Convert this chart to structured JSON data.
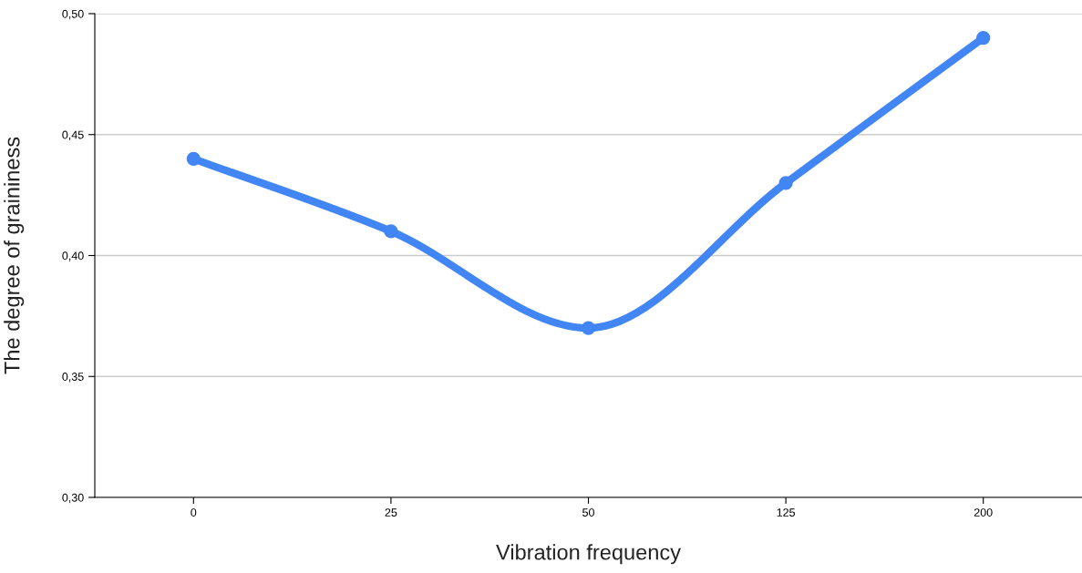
{
  "chart_data": {
    "type": "line",
    "xlabel": "Vibration frequency",
    "ylabel": "The degree of graininess",
    "categories": [
      "0",
      "25",
      "50",
      "125",
      "200"
    ],
    "series": [
      {
        "color": "#4285f4",
        "values": [
          0.44,
          0.41,
          0.37,
          0.43,
          0.49
        ]
      }
    ],
    "ylim": [
      0.3,
      0.5
    ],
    "yticks": [
      {
        "value": 0.3,
        "label": "0,30"
      },
      {
        "value": 0.35,
        "label": "0,35"
      },
      {
        "value": 0.4,
        "label": "0,40"
      },
      {
        "value": 0.45,
        "label": "0,45"
      },
      {
        "value": 0.5,
        "label": "0,50"
      }
    ],
    "grid": "y",
    "marker": "circle",
    "line_style": "solid",
    "legend": false
  }
}
